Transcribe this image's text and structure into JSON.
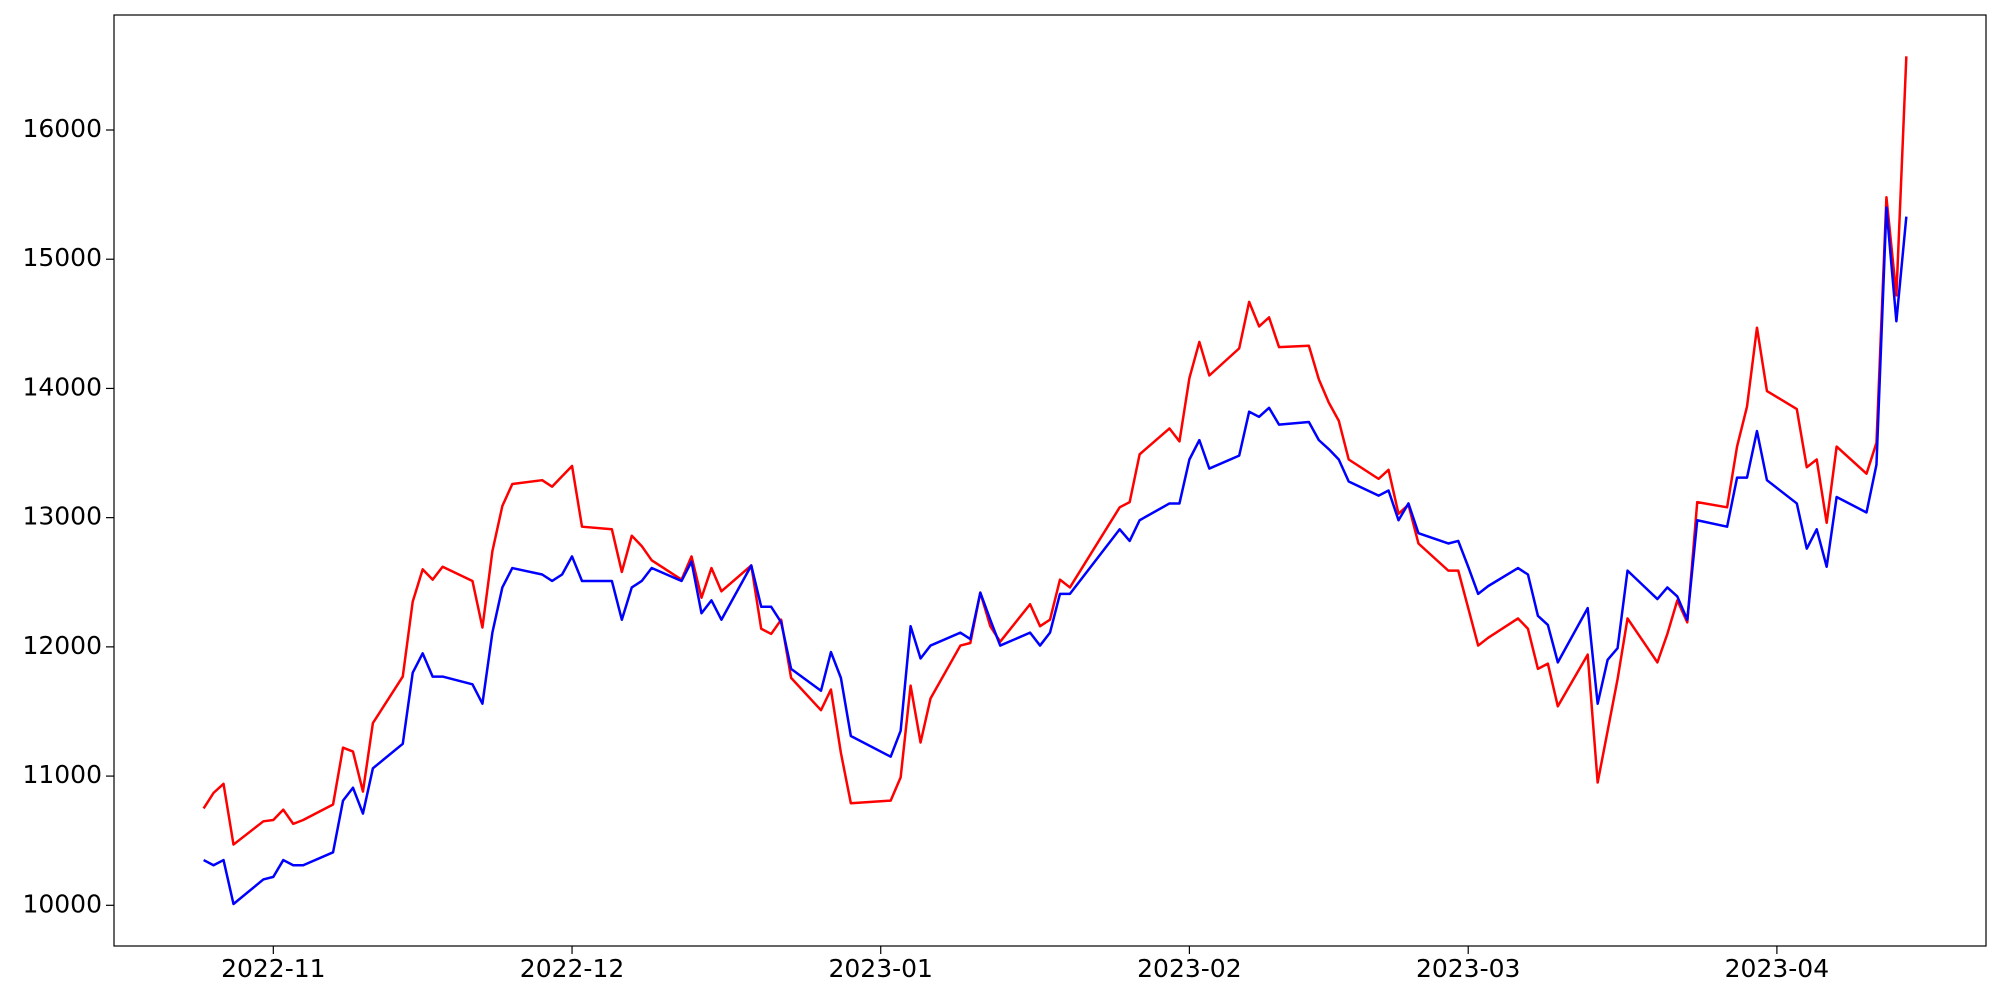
{
  "chart_data": {
    "type": "line",
    "x": [
      "2022-10-25",
      "2022-10-26",
      "2022-10-27",
      "2022-10-28",
      "2022-10-31",
      "2022-11-01",
      "2022-11-02",
      "2022-11-03",
      "2022-11-04",
      "2022-11-07",
      "2022-11-08",
      "2022-11-09",
      "2022-11-10",
      "2022-11-11",
      "2022-11-14",
      "2022-11-15",
      "2022-11-16",
      "2022-11-17",
      "2022-11-18",
      "2022-11-21",
      "2022-11-22",
      "2022-11-23",
      "2022-11-24",
      "2022-11-25",
      "2022-11-28",
      "2022-11-29",
      "2022-11-30",
      "2022-12-01",
      "2022-12-02",
      "2022-12-05",
      "2022-12-06",
      "2022-12-07",
      "2022-12-08",
      "2022-12-09",
      "2022-12-12",
      "2022-12-13",
      "2022-12-14",
      "2022-12-15",
      "2022-12-16",
      "2022-12-19",
      "2022-12-20",
      "2022-12-21",
      "2022-12-22",
      "2022-12-23",
      "2022-12-26",
      "2022-12-27",
      "2022-12-28",
      "2022-12-29",
      "2023-01-02",
      "2023-01-03",
      "2023-01-04",
      "2023-01-05",
      "2023-01-06",
      "2023-01-09",
      "2023-01-10",
      "2023-01-11",
      "2023-01-12",
      "2023-01-13",
      "2023-01-16",
      "2023-01-17",
      "2023-01-18",
      "2023-01-19",
      "2023-01-20",
      "2023-01-25",
      "2023-01-26",
      "2023-01-27",
      "2023-01-30",
      "2023-01-31",
      "2023-02-01",
      "2023-02-02",
      "2023-02-03",
      "2023-02-06",
      "2023-02-07",
      "2023-02-08",
      "2023-02-09",
      "2023-02-10",
      "2023-02-13",
      "2023-02-14",
      "2023-02-15",
      "2023-02-16",
      "2023-02-17",
      "2023-02-20",
      "2023-02-21",
      "2023-02-22",
      "2023-02-23",
      "2023-02-24",
      "2023-02-27",
      "2023-02-28",
      "2023-03-01",
      "2023-03-02",
      "2023-03-03",
      "2023-03-06",
      "2023-03-07",
      "2023-03-08",
      "2023-03-09",
      "2023-03-10",
      "2023-03-13",
      "2023-03-14",
      "2023-03-15",
      "2023-03-16",
      "2023-03-17",
      "2023-03-20",
      "2023-03-21",
      "2023-03-22",
      "2023-03-23",
      "2023-03-24",
      "2023-03-27",
      "2023-03-28",
      "2023-03-29",
      "2023-03-30",
      "2023-03-31",
      "2023-04-03",
      "2023-04-04",
      "2023-04-05",
      "2023-04-06",
      "2023-04-07",
      "2023-04-10",
      "2023-04-11",
      "2023-04-12",
      "2023-04-13",
      "2023-04-14"
    ],
    "series": [
      {
        "color": "#ff0000",
        "values": [
          10750,
          10870,
          10940,
          10470,
          10650,
          10660,
          10740,
          10630,
          10660,
          10780,
          11220,
          11190,
          10880,
          11410,
          11770,
          12350,
          12600,
          12520,
          12620,
          12510,
          12150,
          12740,
          13090,
          13260,
          13290,
          13240,
          13320,
          13400,
          12930,
          12910,
          12580,
          12860,
          12780,
          12670,
          12520,
          12700,
          12380,
          12610,
          12430,
          12630,
          12140,
          12100,
          12210,
          11760,
          11510,
          11670,
          11180,
          10790,
          10810,
          10990,
          11700,
          11260,
          11600,
          12010,
          12030,
          12420,
          12160,
          12040,
          12330,
          12160,
          12210,
          12520,
          12460,
          13080,
          13120,
          13490,
          13690,
          13590,
          14080,
          14360,
          14100,
          14310,
          14670,
          14480,
          14550,
          14320,
          14330,
          14070,
          13890,
          13750,
          13450,
          13300,
          13370,
          13030,
          13100,
          12800,
          12590,
          12590,
          12300,
          12010,
          12070,
          12220,
          12140,
          11830,
          11870,
          11540,
          11940,
          10950,
          11350,
          11750,
          12220,
          11880,
          12100,
          12360,
          12190,
          13120,
          13080,
          13550,
          13860,
          14470,
          13980,
          13840,
          13390,
          13450,
          12960,
          13550,
          13340,
          13580,
          15480,
          14720,
          16570
        ]
      },
      {
        "color": "#0000ff",
        "values": [
          10350,
          10310,
          10350,
          10010,
          10200,
          10220,
          10350,
          10310,
          10310,
          10410,
          10810,
          10910,
          10710,
          11060,
          11250,
          11800,
          11950,
          11770,
          11770,
          11710,
          11560,
          12110,
          12460,
          12610,
          12560,
          12510,
          12560,
          12700,
          12510,
          12510,
          12210,
          12460,
          12510,
          12610,
          12510,
          12660,
          12260,
          12360,
          12210,
          12630,
          12310,
          12310,
          12190,
          11830,
          11660,
          11960,
          11760,
          11310,
          11150,
          11350,
          12160,
          11910,
          12010,
          12110,
          12060,
          12420,
          12210,
          12010,
          12110,
          12010,
          12110,
          12410,
          12410,
          12910,
          12820,
          12980,
          13110,
          13110,
          13450,
          13600,
          13380,
          13480,
          13820,
          13780,
          13850,
          13720,
          13740,
          13600,
          13530,
          13450,
          13280,
          13170,
          13210,
          12980,
          13110,
          12880,
          12800,
          12820,
          12620,
          12410,
          12470,
          12610,
          12560,
          12240,
          12170,
          11880,
          12300,
          11560,
          11900,
          11990,
          12590,
          12370,
          12460,
          12390,
          12210,
          12980,
          12930,
          13310,
          13310,
          13670,
          13290,
          13110,
          12760,
          12910,
          12620,
          13160,
          13040,
          13410,
          15400,
          14520,
          15330
        ]
      }
    ],
    "xlim": [
      "2022-10-16",
      "2023-04-22"
    ],
    "xticks": [
      {
        "value": "2022-11-01",
        "label": "2022-11"
      },
      {
        "value": "2022-12-01",
        "label": "2022-12"
      },
      {
        "value": "2023-01-01",
        "label": "2023-01"
      },
      {
        "value": "2023-02-01",
        "label": "2023-02"
      },
      {
        "value": "2023-03-01",
        "label": "2023-03"
      },
      {
        "value": "2023-04-01",
        "label": "2023-04"
      }
    ],
    "ylim": [
      9685,
      16890
    ],
    "yticks": [
      10000,
      11000,
      12000,
      13000,
      14000,
      15000,
      16000
    ],
    "grid": false
  }
}
